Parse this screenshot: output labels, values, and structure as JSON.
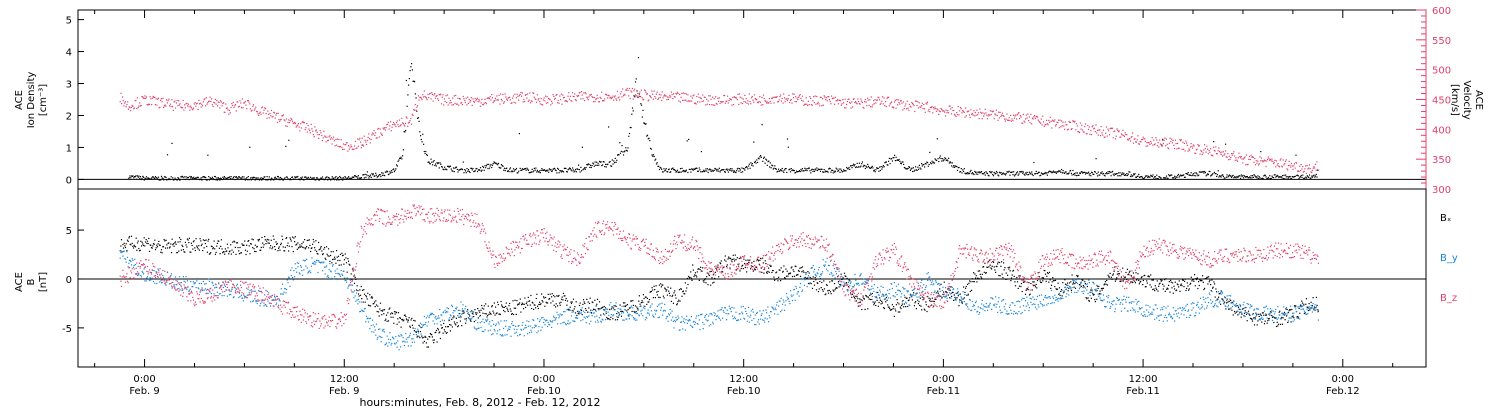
{
  "colors": {
    "black": "#000000",
    "pink": "#e0406a",
    "blue": "#1a86d8"
  },
  "chart_data": [
    {
      "type": "scatter",
      "panel": "top",
      "ylabel_left": [
        "ACE",
        "Ion Density",
        "[cm⁻³]"
      ],
      "ylabel_right": [
        "ACE",
        "Velocity",
        "[km/s]"
      ],
      "y_left_ticks": [
        "0",
        "1",
        "2",
        "3",
        "4",
        "5"
      ],
      "y_left_range": [
        -0.3,
        5.3
      ],
      "y_right_ticks": [
        "300",
        "350",
        "400",
        "450",
        "500",
        "550",
        "600"
      ],
      "y_right_range": [
        300,
        600
      ],
      "series": [
        {
          "axis": "left",
          "color": "black",
          "x_hours": [
            -1,
            0,
            1,
            2,
            3,
            4,
            5,
            6,
            7,
            8,
            9,
            10,
            11,
            12,
            13,
            14,
            15,
            15.5,
            16,
            16.5,
            17,
            17.5,
            18,
            19,
            20,
            21,
            22,
            23,
            24,
            25,
            26,
            27,
            28,
            29,
            29.5,
            30,
            30.5,
            31,
            32,
            33,
            34,
            35,
            36,
            37,
            38,
            39,
            40,
            41,
            42,
            43,
            44,
            45,
            46,
            47,
            48,
            49,
            50,
            51,
            52,
            53,
            54,
            55,
            56,
            57,
            58,
            59,
            60,
            61,
            62,
            63,
            64,
            65,
            66,
            67,
            68,
            69,
            70,
            70.5
          ],
          "values": [
            0.1,
            0.05,
            0.05,
            0.05,
            0.05,
            0.05,
            0.05,
            0.05,
            0.05,
            0.05,
            0.05,
            0.05,
            0.05,
            0.05,
            0.1,
            0.15,
            0.3,
            0.8,
            3.8,
            1.5,
            0.6,
            0.5,
            0.4,
            0.3,
            0.3,
            0.5,
            0.3,
            0.3,
            0.3,
            0.3,
            0.3,
            0.5,
            0.5,
            1.0,
            3.0,
            1.8,
            0.8,
            0.3,
            0.3,
            0.3,
            0.3,
            0.3,
            0.3,
            0.7,
            0.3,
            0.3,
            0.3,
            0.3,
            0.3,
            0.5,
            0.3,
            0.7,
            0.3,
            0.5,
            0.7,
            0.3,
            0.2,
            0.2,
            0.2,
            0.2,
            0.2,
            0.3,
            0.2,
            0.2,
            0.2,
            0.2,
            0.1,
            0.1,
            0.1,
            0.2,
            0.2,
            0.1,
            0.1,
            0.1,
            0.1,
            0.1,
            0.1,
            0.15
          ]
        },
        {
          "axis": "right",
          "color": "pink",
          "x_hours": [
            -1.5,
            -1,
            0,
            1,
            2,
            3,
            4,
            5,
            6,
            7,
            8,
            9,
            10,
            11,
            12,
            13,
            14,
            15,
            16,
            16.5,
            17,
            18,
            19,
            20,
            21,
            22,
            23,
            24,
            25,
            26,
            27,
            28,
            29,
            30,
            31,
            32,
            33,
            34,
            35,
            36,
            37,
            38,
            39,
            40,
            41,
            42,
            43,
            44,
            45,
            46,
            47,
            48,
            49,
            50,
            51,
            52,
            53,
            54,
            55,
            56,
            57,
            58,
            59,
            60,
            61,
            62,
            63,
            64,
            65,
            66,
            67,
            68,
            69,
            70,
            70.5
          ],
          "values": [
            455,
            440,
            450,
            445,
            440,
            442,
            448,
            435,
            445,
            430,
            420,
            410,
            400,
            385,
            372,
            378,
            395,
            410,
            415,
            460,
            455,
            450,
            450,
            448,
            452,
            452,
            455,
            450,
            452,
            455,
            456,
            456,
            462,
            458,
            455,
            454,
            452,
            450,
            450,
            452,
            450,
            455,
            452,
            448,
            450,
            445,
            444,
            448,
            445,
            440,
            438,
            432,
            430,
            428,
            425,
            422,
            418,
            414,
            410,
            405,
            400,
            395,
            390,
            380,
            378,
            377,
            370,
            365,
            360,
            350,
            348,
            345,
            340,
            335,
            340
          ]
        }
      ]
    },
    {
      "type": "scatter",
      "panel": "bottom",
      "ylabel": [
        "ACE",
        "B",
        "[nT]"
      ],
      "y_ticks": [
        "-5",
        "0",
        "5"
      ],
      "y_range": [
        -9,
        9.2
      ],
      "legend": [
        "Bₓ",
        "B_y",
        "B_z"
      ],
      "series": [
        {
          "name": "Bₓ",
          "color": "black",
          "x_hours": [
            -1.5,
            0,
            1,
            2,
            3,
            4,
            5,
            6,
            7,
            8,
            9,
            10,
            11,
            12,
            13,
            14,
            15,
            16,
            17,
            18,
            19,
            20,
            21,
            22,
            23,
            24,
            25,
            26,
            27,
            28,
            29,
            30,
            31,
            32,
            33,
            34,
            35,
            36,
            37,
            38,
            39,
            40,
            41,
            42,
            43,
            44,
            45,
            46,
            47,
            48,
            49,
            50,
            51,
            52,
            53,
            54,
            55,
            56,
            57,
            58,
            59,
            60,
            61,
            62,
            63,
            64,
            65,
            66,
            67,
            68,
            69,
            70,
            70.5
          ],
          "values": [
            3.5,
            3.8,
            3.3,
            3.5,
            3.4,
            3.4,
            3.3,
            3.3,
            3.6,
            3.7,
            3.6,
            3.6,
            2.5,
            2.0,
            -1.5,
            -3.0,
            -4.0,
            -4.5,
            -6.5,
            -5.0,
            -4.0,
            -3.5,
            -3.0,
            -3.0,
            -2.5,
            -2.0,
            -2.0,
            -3.0,
            -2.5,
            -3.5,
            -3.0,
            -2.0,
            -1.0,
            -2.0,
            1.0,
            0.0,
            2.0,
            1.5,
            1.5,
            0.5,
            1.0,
            0.0,
            -1.0,
            0.0,
            -2.5,
            -2.0,
            -3.0,
            -2.0,
            -2.5,
            -1.0,
            -2.0,
            0.5,
            1.5,
            0.5,
            -1.0,
            0.5,
            -1.0,
            0.0,
            -2.0,
            0.5,
            0.5,
            0.0,
            -0.5,
            -1.0,
            0.0,
            -0.5,
            -2.5,
            -3.5,
            -4.0,
            -4.0,
            -3.5,
            -2.5,
            -2.5
          ]
        },
        {
          "name": "B_y",
          "color": "blue",
          "x_hours": [
            -1.5,
            -1,
            0,
            1,
            2,
            3,
            4,
            5,
            6,
            7,
            8,
            9,
            10,
            11,
            12,
            13,
            14,
            15,
            16,
            17,
            18,
            19,
            20,
            21,
            22,
            23,
            24,
            25,
            26,
            27,
            28,
            29,
            30,
            31,
            32,
            33,
            34,
            35,
            36,
            37,
            38,
            39,
            40,
            41,
            42,
            43,
            44,
            45,
            46,
            47,
            48,
            49,
            50,
            51,
            52,
            53,
            54,
            55,
            56,
            57,
            58,
            59,
            60,
            61,
            62,
            63,
            64,
            65,
            66,
            67,
            68,
            69,
            70,
            70.5
          ],
          "values": [
            2.5,
            2.0,
            0.5,
            0.3,
            -0.5,
            -0.5,
            -0.8,
            -1.0,
            -1.5,
            -2.0,
            -2.0,
            1.0,
            1.5,
            1.0,
            0.5,
            -3.0,
            -5.5,
            -6.5,
            -6.0,
            -4.0,
            -3.5,
            -3.0,
            -4.5,
            -5.0,
            -5.0,
            -5.0,
            -4.5,
            -4.0,
            -3.5,
            -4.0,
            -3.0,
            -3.5,
            -3.5,
            -3.0,
            -4.5,
            -4.5,
            -4.0,
            -3.5,
            -3.5,
            -4.0,
            -3.0,
            -1.5,
            0.5,
            1.5,
            -0.5,
            0.0,
            -1.5,
            -1.0,
            -2.0,
            0.0,
            -1.5,
            -1.5,
            -3.0,
            -2.5,
            -3.0,
            -2.5,
            -2.0,
            -1.5,
            -0.5,
            -1.0,
            -2.5,
            -2.5,
            -3.0,
            -3.5,
            -3.5,
            -3.0,
            -2.0,
            -2.0,
            -3.0,
            -3.5,
            -3.5,
            -3.5,
            -3.0,
            -3.5
          ]
        },
        {
          "name": "B_z",
          "color": "pink",
          "x_hours": [
            -1.5,
            0,
            1,
            2,
            3,
            4,
            5,
            6,
            7,
            8,
            9,
            10,
            11,
            12,
            13,
            14,
            15,
            16,
            17,
            18,
            19,
            20,
            21,
            22,
            23,
            24,
            25,
            26,
            27,
            28,
            29,
            30,
            31,
            32,
            33,
            34,
            35,
            36,
            37,
            38,
            39,
            40,
            41,
            42,
            43,
            44,
            45,
            46,
            47,
            48,
            49,
            50,
            51,
            52,
            53,
            54,
            55,
            56,
            57,
            58,
            59,
            60,
            61,
            62,
            63,
            64,
            65,
            66,
            67,
            68,
            69,
            70,
            70.5
          ],
          "values": [
            0.0,
            1.5,
            0.5,
            -1.0,
            -2.0,
            -1.5,
            -0.5,
            -1.0,
            -1.5,
            -2.5,
            -3.5,
            -4.0,
            -4.5,
            -4.0,
            5.0,
            6.5,
            6.0,
            7.0,
            6.5,
            6.5,
            6.5,
            6.0,
            2.0,
            3.0,
            4.0,
            4.5,
            3.0,
            2.0,
            5.0,
            5.5,
            4.0,
            3.5,
            2.0,
            4.0,
            3.5,
            1.0,
            0.5,
            2.0,
            1.5,
            3.0,
            4.0,
            4.0,
            3.5,
            -1.0,
            -2.0,
            2.0,
            3.0,
            0.0,
            -2.0,
            -2.5,
            3.0,
            2.5,
            2.5,
            3.0,
            -1.0,
            2.0,
            2.5,
            1.5,
            2.0,
            2.5,
            -1.0,
            3.0,
            3.5,
            3.0,
            2.5,
            2.0,
            2.5,
            2.5,
            2.5,
            3.0,
            3.0,
            2.5,
            2.0
          ]
        }
      ]
    }
  ],
  "x_axis": {
    "range_hours": [
      -4,
      77
    ],
    "ticks": [
      {
        "h": 0,
        "time": "0:00",
        "date": "Feb. 9"
      },
      {
        "h": 12,
        "time": "12:00",
        "date": "Feb. 9"
      },
      {
        "h": 24,
        "time": "0:00",
        "date": "Feb.10"
      },
      {
        "h": 36,
        "time": "12:00",
        "date": "Feb.10"
      },
      {
        "h": 48,
        "time": "0:00",
        "date": "Feb.11"
      },
      {
        "h": 60,
        "time": "12:00",
        "date": "Feb.11"
      },
      {
        "h": 72,
        "time": "0:00",
        "date": "Feb.12"
      }
    ],
    "title": "hours:minutes, Feb.  8, 2012 - Feb. 12, 2012"
  }
}
